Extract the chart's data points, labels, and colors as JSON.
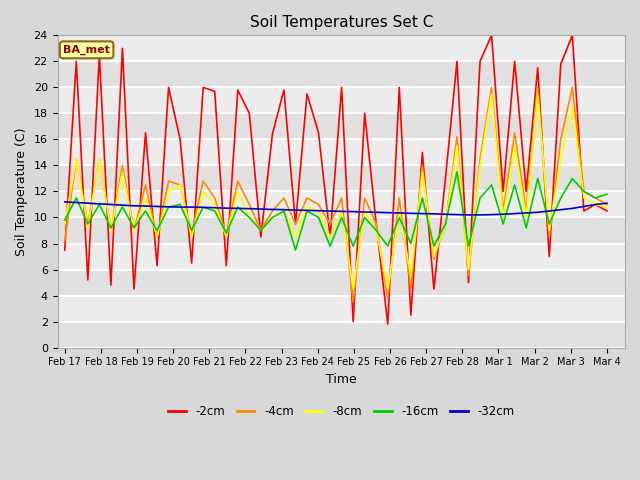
{
  "title": "Soil Temperatures Set C",
  "xlabel": "Time",
  "ylabel": "Soil Temperature (C)",
  "annotation": "BA_met",
  "ylim": [
    0,
    24
  ],
  "yticks": [
    0,
    2,
    4,
    6,
    8,
    10,
    12,
    14,
    16,
    18,
    20,
    22,
    24
  ],
  "x_labels": [
    "Feb 17",
    "Feb 18",
    "Feb 19",
    "Feb 20",
    "Feb 21",
    "Feb 22",
    "Feb 23",
    "Feb 24",
    "Feb 25",
    "Feb 26",
    "Feb 27",
    "Feb 28",
    "Mar 1",
    "Mar 2",
    "Mar 3",
    "Mar 4"
  ],
  "colors": {
    "-2cm": "#ff0000",
    "-4cm": "#ff8800",
    "-8cm": "#ffff00",
    "-16cm": "#00cc00",
    "-32cm": "#0000cc"
  },
  "background_color": "#d8d8d8",
  "plot_bg_color": "#e8e8e8",
  "series": {
    "-2cm": [
      7.5,
      22.0,
      5.2,
      22.5,
      4.8,
      23.0,
      4.5,
      16.5,
      6.3,
      20.0,
      16.0,
      6.5,
      20.0,
      19.7,
      6.3,
      19.8,
      18.0,
      8.5,
      16.4,
      19.8,
      9.5,
      19.5,
      16.5,
      8.5,
      20.0,
      2.0,
      18.0,
      9.5,
      1.8,
      20.0,
      2.5,
      15.0,
      4.5,
      13.0,
      22.0,
      5.0,
      22.0,
      24.0,
      12.0,
      22.0,
      12.0,
      21.5,
      7.0,
      21.8,
      24.0,
      10.5,
      11.0,
      10.5
    ],
    "-4cm": [
      8.2,
      14.5,
      9.5,
      14.5,
      9.0,
      14.0,
      9.0,
      12.5,
      8.5,
      12.8,
      12.5,
      8.8,
      12.8,
      11.5,
      8.7,
      12.8,
      11.0,
      9.0,
      10.5,
      11.5,
      9.5,
      11.5,
      11.0,
      9.5,
      11.5,
      3.5,
      11.5,
      9.5,
      3.8,
      11.5,
      4.5,
      14.0,
      6.8,
      9.5,
      16.2,
      5.5,
      14.5,
      20.0,
      10.5,
      16.5,
      10.5,
      20.0,
      8.5,
      16.0,
      20.0,
      12.0,
      11.5,
      11.0
    ],
    "-8cm": [
      9.5,
      14.5,
      9.2,
      14.5,
      9.0,
      13.5,
      9.0,
      11.5,
      8.5,
      12.0,
      12.5,
      8.5,
      12.0,
      11.0,
      8.5,
      12.0,
      10.0,
      9.0,
      10.0,
      10.5,
      8.5,
      10.8,
      10.5,
      8.5,
      10.5,
      4.5,
      10.5,
      9.0,
      4.5,
      10.5,
      5.5,
      13.5,
      7.0,
      9.5,
      15.5,
      6.0,
      14.0,
      19.5,
      10.0,
      15.5,
      10.0,
      19.5,
      9.0,
      14.5,
      18.5,
      11.5,
      11.0,
      10.8
    ],
    "-16cm": [
      9.8,
      11.5,
      9.5,
      11.0,
      9.2,
      10.8,
      9.2,
      10.5,
      9.0,
      10.8,
      11.0,
      9.0,
      10.8,
      10.5,
      8.8,
      10.8,
      10.0,
      9.0,
      10.0,
      10.5,
      7.5,
      10.5,
      10.0,
      7.8,
      10.0,
      7.8,
      10.0,
      9.0,
      7.8,
      10.0,
      8.0,
      11.5,
      7.8,
      9.5,
      13.5,
      7.8,
      11.5,
      12.5,
      9.5,
      12.5,
      9.2,
      13.0,
      9.5,
      11.5,
      13.0,
      12.0,
      11.5,
      11.8
    ],
    "-32cm": [
      11.2,
      11.15,
      11.1,
      11.05,
      11.0,
      10.95,
      10.9,
      10.88,
      10.85,
      10.82,
      10.8,
      10.8,
      10.78,
      10.75,
      10.72,
      10.7,
      10.68,
      10.65,
      10.62,
      10.6,
      10.57,
      10.55,
      10.52,
      10.5,
      10.47,
      10.45,
      10.42,
      10.4,
      10.37,
      10.35,
      10.32,
      10.3,
      10.28,
      10.25,
      10.22,
      10.2,
      10.2,
      10.22,
      10.25,
      10.3,
      10.35,
      10.4,
      10.5,
      10.6,
      10.7,
      10.85,
      11.0,
      11.1
    ]
  }
}
